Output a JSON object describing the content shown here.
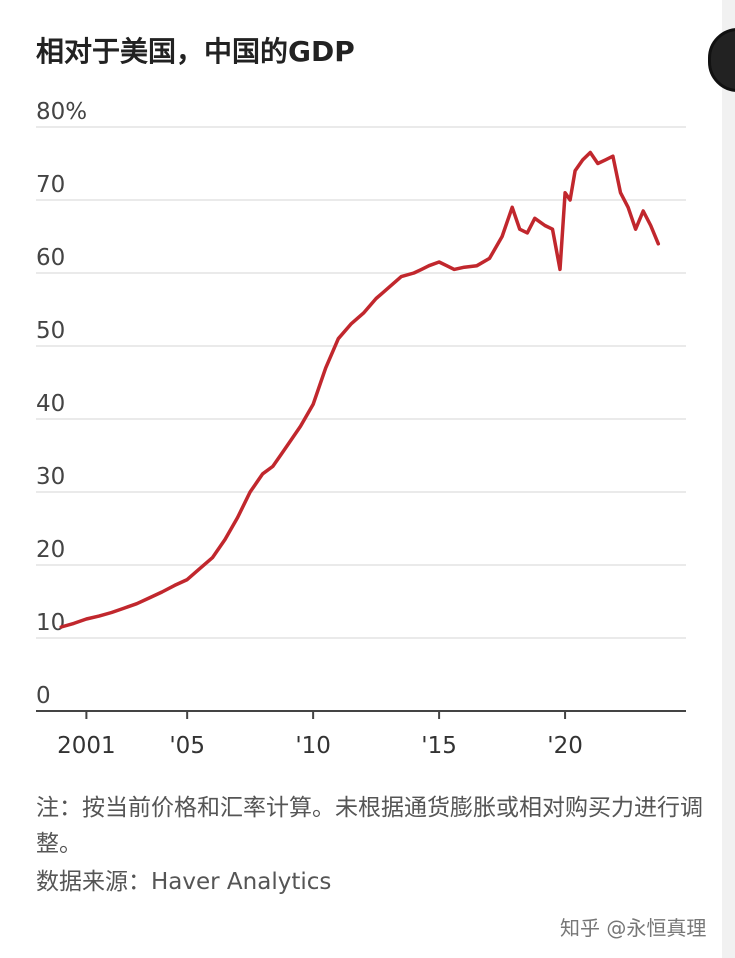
{
  "chart_data": {
    "type": "line",
    "title": "相对于美国，中国的GDP",
    "yticks": [
      "80%",
      "70",
      "60",
      "50",
      "40",
      "30",
      "20",
      "10",
      "0"
    ],
    "xticks": [
      {
        "label": "2001",
        "x": 2001
      },
      {
        "label": "'05",
        "x": 2005
      },
      {
        "label": "'10",
        "x": 2010
      },
      {
        "label": "'15",
        "x": 2015
      },
      {
        "label": "'20",
        "x": 2020
      }
    ],
    "xlim": [
      1999,
      2024.8
    ],
    "ylim": [
      0,
      80
    ],
    "grid": true,
    "series_color": "#c1272d",
    "series": [
      {
        "x": [
          2000.0,
          2000.5,
          2001.0,
          2001.5,
          2002.0,
          2002.5,
          2003.0,
          2003.5,
          2004.0,
          2004.5,
          2005.0,
          2005.5,
          2006.0,
          2006.5,
          2007.0,
          2007.5,
          2008.0,
          2008.4,
          2008.7,
          2009.0,
          2009.5,
          2010.0,
          2010.5,
          2011.0,
          2011.5,
          2012.0,
          2012.5,
          2013.0,
          2013.5,
          2014.0,
          2014.3,
          2014.6,
          2015.0,
          2015.3,
          2015.6,
          2016.0,
          2016.5,
          2017.0,
          2017.5,
          2017.9,
          2018.2,
          2018.5,
          2018.8,
          2019.0,
          2019.2,
          2019.5,
          2019.8,
          2020.0,
          2020.2,
          2020.4,
          2020.7,
          2021.0,
          2021.3,
          2021.6,
          2021.9,
          2022.2,
          2022.5,
          2022.8,
          2023.1,
          2023.4,
          2023.7
        ],
        "y": [
          11.5,
          12.0,
          12.6,
          13.0,
          13.5,
          14.1,
          14.7,
          15.5,
          16.3,
          17.2,
          18.0,
          19.5,
          21.0,
          23.5,
          26.5,
          30.0,
          32.5,
          33.5,
          35.0,
          36.5,
          39.0,
          42.0,
          47.0,
          51.0,
          53.0,
          54.5,
          56.5,
          58.0,
          59.5,
          60.0,
          60.5,
          61.0,
          61.5,
          61.0,
          60.5,
          60.8,
          61.0,
          62.0,
          65.0,
          69.0,
          66.0,
          65.5,
          67.5,
          67.0,
          66.5,
          66.0,
          60.5,
          71.0,
          70.0,
          74.0,
          75.5,
          76.5,
          75.0,
          75.5,
          76.0,
          71.0,
          69.0,
          66.0,
          68.5,
          66.5,
          64.0
        ]
      }
    ],
    "note": "注：按当前价格和汇率计算。未根据通货膨胀或相对购买力进行调整。",
    "source": "数据来源：Haver Analytics"
  },
  "watermark": "知乎 @永恒真理"
}
